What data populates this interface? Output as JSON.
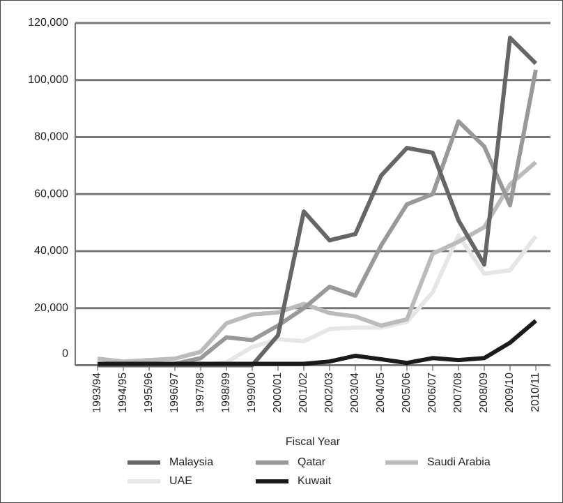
{
  "chart_data": {
    "type": "line",
    "x_label": "Fiscal Year",
    "categories": [
      "1993/94",
      "1994/95",
      "1995/96",
      "1996/97",
      "1997/98",
      "1998/99",
      "1999/00",
      "2000/01",
      "2001/02",
      "2002/03",
      "2003/04",
      "2004/05",
      "2005/06",
      "2006/07",
      "2007/08",
      "2008/09",
      "2009/10",
      "2010/11"
    ],
    "series": [
      {
        "name": "Malaysia",
        "color": "#666666",
        "values": [
          0,
          0,
          0,
          0,
          0,
          0,
          0,
          10500,
          53900,
          43800,
          46000,
          66500,
          76200,
          74500,
          50800,
          35300,
          114800,
          105800
        ]
      },
      {
        "name": "Qatar",
        "color": "#999999",
        "values": [
          0,
          0,
          0,
          500,
          2500,
          9800,
          8800,
          13900,
          20000,
          27500,
          24400,
          42000,
          56400,
          60000,
          85500,
          76700,
          56100,
          103600
        ]
      },
      {
        "name": "Saudi Arabia",
        "color": "#bbbbbb",
        "values": [
          2300,
          1300,
          1800,
          2300,
          4700,
          14700,
          17800,
          18500,
          21500,
          18300,
          17100,
          13900,
          16100,
          39100,
          43300,
          48400,
          63400,
          71200
        ]
      },
      {
        "name": "UAE",
        "color": "#e6e6e6",
        "values": [
          0,
          0,
          0,
          0,
          0,
          1000,
          6400,
          9100,
          8400,
          12700,
          13200,
          13200,
          15200,
          25600,
          45500,
          32100,
          33300,
          45200
        ]
      },
      {
        "name": "Kuwait",
        "color": "#1a1a1a",
        "values": [
          500,
          500,
          500,
          500,
          500,
          500,
          500,
          500,
          500,
          1300,
          3300,
          2100,
          800,
          2500,
          1800,
          2500,
          7900,
          15600
        ]
      }
    ],
    "ylim": [
      0,
      120000
    ],
    "yticks": [
      0,
      {
        "value": 20000,
        "label": "20,000"
      },
      {
        "value": 40000,
        "label": "40,000"
      },
      {
        "value": 60000,
        "label": "60,000"
      },
      {
        "value": 80000,
        "label": "80,000"
      },
      {
        "value": 100000,
        "label": "100,000"
      },
      {
        "value": 120000,
        "label": "120,000"
      }
    ],
    "grid": true,
    "legend": "bottom"
  }
}
